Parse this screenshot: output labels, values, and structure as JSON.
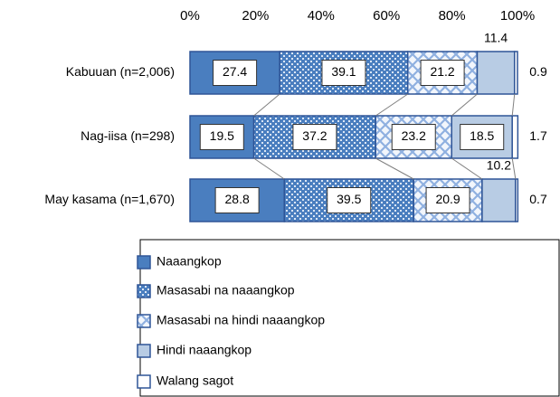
{
  "chart_data": {
    "type": "stacked-bar-horizontal",
    "categories": [
      "Kabuuan (n=2,006)",
      "Nag-iisa (n=298)",
      "May kasama (n=1,670)"
    ],
    "series": [
      {
        "name": "Naaangkop",
        "color": "#4a7ebf",
        "pattern": "solid",
        "values": [
          27.4,
          19.5,
          28.8
        ]
      },
      {
        "name": "Masasabi na naaangkop",
        "color": "#4a7ebf",
        "pattern": "dots",
        "values": [
          39.1,
          37.2,
          39.5
        ]
      },
      {
        "name": "Masasabi na hindi naaangkop",
        "color": "#8fb0e0",
        "pattern": "diamond",
        "values": [
          21.2,
          23.2,
          20.9
        ]
      },
      {
        "name": "Hindi naaangkop",
        "color": "#b8cce4",
        "pattern": "solid",
        "values": [
          11.4,
          18.5,
          10.2
        ]
      },
      {
        "name": "Walang sagot",
        "color": "#ffffff",
        "pattern": "solid",
        "values": [
          0.9,
          1.7,
          0.7
        ]
      }
    ],
    "xlim": [
      0,
      100
    ],
    "xticks": [
      {
        "value": 0,
        "label": "0%"
      },
      {
        "value": 20,
        "label": "20%"
      },
      {
        "value": 40,
        "label": "40%"
      },
      {
        "value": 60,
        "label": "60%"
      },
      {
        "value": 80,
        "label": "80%"
      },
      {
        "value": 100,
        "label": "100%"
      }
    ],
    "legend": "bottom"
  }
}
